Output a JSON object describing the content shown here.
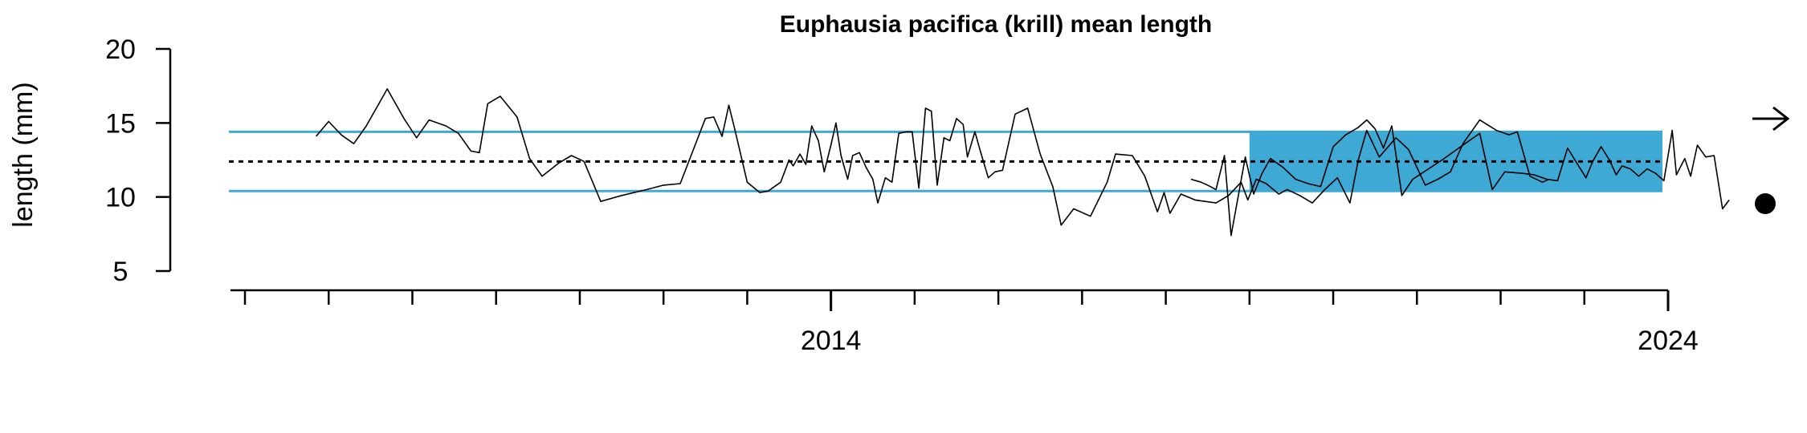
{
  "chart_data": {
    "type": "line",
    "title": "Euphausia pacifica (krill) mean length",
    "xlabel": "",
    "ylabel": "length (mm)",
    "ylim": [
      5,
      20
    ],
    "y_ticks": [
      "5",
      "10",
      "15",
      "20"
    ],
    "x_tick_labels": [
      {
        "label": "2014",
        "x": 2014.0
      },
      {
        "label": "2024",
        "x": 2024.0
      }
    ],
    "xlim": [
      2007,
      2024
    ],
    "x_minor_ticks": [
      2007,
      2008,
      2009,
      2010,
      2011,
      2012,
      2013,
      2014,
      2015,
      2016,
      2017,
      2018,
      2019,
      2020,
      2021,
      2022,
      2023,
      2024
    ],
    "reference": {
      "mean": 12.4,
      "upper_sd": 14.4,
      "lower_sd": 10.4,
      "recent_window_start": 2019.0,
      "recent_window_end": 2024.0
    },
    "colors": {
      "band": "#3fa9d6",
      "line": "#000000",
      "mean_line": "#000000"
    },
    "trend_symbol": "→",
    "mean_symbol": "●",
    "series": [
      {
        "points": [
          [
            2007.85,
            14.1
          ],
          [
            2008.0,
            15.1
          ],
          [
            2008.15,
            14.2
          ],
          [
            2008.3,
            13.6
          ],
          [
            2008.45,
            14.8
          ],
          [
            2008.7,
            17.3
          ],
          [
            2008.9,
            15.3
          ],
          [
            2009.05,
            14.0
          ],
          [
            2009.2,
            15.2
          ],
          [
            2009.4,
            14.8
          ],
          [
            2009.55,
            14.3
          ],
          [
            2009.7,
            13.1
          ],
          [
            2009.8,
            13.0
          ],
          [
            2009.9,
            16.3
          ],
          [
            2010.05,
            16.8
          ],
          [
            2010.25,
            15.4
          ],
          [
            2010.4,
            12.6
          ],
          [
            2010.55,
            11.4
          ],
          [
            2010.75,
            12.3
          ],
          [
            2010.9,
            12.8
          ],
          [
            2011.05,
            12.4
          ],
          [
            2011.25,
            9.7
          ],
          [
            2011.5,
            10.1
          ],
          [
            2011.8,
            10.5
          ],
          [
            2012.0,
            10.8
          ],
          [
            2012.2,
            10.9
          ],
          [
            2012.5,
            15.3
          ],
          [
            2012.6,
            15.4
          ],
          [
            2012.7,
            14.1
          ],
          [
            2012.78,
            16.2
          ],
          [
            2012.85,
            14.6
          ],
          [
            2013.0,
            11.0
          ],
          [
            2013.15,
            10.3
          ],
          [
            2013.25,
            10.4
          ],
          [
            2013.4,
            11.0
          ],
          [
            2013.5,
            12.5
          ],
          [
            2013.55,
            12.1
          ],
          [
            2013.63,
            12.9
          ],
          [
            2013.7,
            12.2
          ],
          [
            2013.77,
            14.8
          ],
          [
            2013.85,
            13.8
          ],
          [
            2013.92,
            11.7
          ],
          [
            2014.0,
            13.5
          ],
          [
            2014.06,
            15.0
          ],
          [
            2014.12,
            12.8
          ],
          [
            2014.2,
            11.2
          ],
          [
            2014.26,
            12.8
          ],
          [
            2014.34,
            13.0
          ],
          [
            2014.42,
            12.0
          ],
          [
            2014.5,
            11.2
          ],
          [
            2014.56,
            9.6
          ],
          [
            2014.65,
            11.3
          ],
          [
            2014.73,
            11.0
          ],
          [
            2014.81,
            14.3
          ],
          [
            2014.9,
            14.4
          ],
          [
            2014.97,
            14.4
          ],
          [
            2015.05,
            10.6
          ],
          [
            2015.13,
            16.0
          ],
          [
            2015.2,
            15.8
          ],
          [
            2015.27,
            10.8
          ],
          [
            2015.35,
            14.0
          ],
          [
            2015.42,
            13.8
          ],
          [
            2015.5,
            15.3
          ],
          [
            2015.58,
            14.9
          ],
          [
            2015.63,
            12.7
          ],
          [
            2015.72,
            14.4
          ],
          [
            2015.8,
            12.8
          ],
          [
            2015.88,
            11.3
          ],
          [
            2015.96,
            11.7
          ],
          [
            2016.05,
            11.8
          ],
          [
            2016.2,
            15.6
          ],
          [
            2016.35,
            16.0
          ],
          [
            2016.5,
            12.9
          ],
          [
            2016.65,
            10.7
          ],
          [
            2016.75,
            8.1
          ],
          [
            2016.9,
            9.2
          ],
          [
            2017.1,
            8.7
          ],
          [
            2017.3,
            11.0
          ],
          [
            2017.4,
            12.9
          ],
          [
            2017.6,
            12.8
          ],
          [
            2017.75,
            11.4
          ],
          [
            2017.9,
            9.0
          ],
          [
            2017.98,
            10.3
          ],
          [
            2018.05,
            8.9
          ],
          [
            2018.18,
            10.2
          ],
          [
            2018.35,
            9.8
          ],
          [
            2018.6,
            9.6
          ],
          [
            2018.75,
            10.1
          ],
          [
            2018.9,
            11.0
          ],
          [
            2018.98,
            9.8
          ],
          [
            2019.08,
            11.2
          ],
          [
            2019.2,
            10.9
          ],
          [
            2019.35,
            10.2
          ],
          [
            2019.45,
            10.5
          ],
          [
            2019.6,
            10.1
          ],
          [
            2019.75,
            9.6
          ],
          [
            2019.9,
            10.5
          ],
          [
            2020.05,
            11.3
          ],
          [
            2020.2,
            9.6
          ],
          [
            2020.3,
            12.5
          ],
          [
            2020.4,
            14.5
          ],
          [
            2020.55,
            12.7
          ],
          [
            2020.75,
            14.0
          ],
          [
            2020.9,
            13.2
          ],
          [
            2021.1,
            10.8
          ],
          [
            2021.25,
            11.2
          ],
          [
            2021.4,
            11.7
          ],
          [
            2021.55,
            13.6
          ],
          [
            2021.75,
            15.2
          ],
          [
            2021.95,
            14.5
          ],
          [
            2022.1,
            14.2
          ],
          [
            2022.2,
            14.4
          ],
          [
            2022.35,
            11.4
          ],
          [
            2022.5,
            11.0
          ],
          [
            2022.58,
            11.2
          ]
        ]
      },
      {
        "points": [
          [
            2018.3,
            11.2
          ],
          [
            2018.42,
            11.0
          ],
          [
            2018.5,
            10.8
          ],
          [
            2018.6,
            10.5
          ],
          [
            2018.7,
            12.8
          ],
          [
            2018.78,
            7.4
          ],
          [
            2018.88,
            10.5
          ],
          [
            2018.95,
            12.7
          ],
          [
            2019.05,
            10.2
          ],
          [
            2019.15,
            11.6
          ],
          [
            2019.25,
            12.6
          ],
          [
            2019.4,
            12.0
          ],
          [
            2019.55,
            11.2
          ],
          [
            2019.7,
            10.9
          ],
          [
            2019.85,
            10.7
          ],
          [
            2020.0,
            13.4
          ],
          [
            2020.15,
            14.2
          ],
          [
            2020.3,
            14.7
          ],
          [
            2020.4,
            15.2
          ],
          [
            2020.5,
            14.6
          ],
          [
            2020.6,
            13.3
          ],
          [
            2020.7,
            14.8
          ],
          [
            2020.82,
            10.1
          ],
          [
            2020.95,
            11.2
          ],
          [
            2021.3,
            12.5
          ],
          [
            2021.55,
            13.5
          ],
          [
            2021.75,
            14.3
          ],
          [
            2021.9,
            10.5
          ],
          [
            2022.05,
            11.7
          ],
          [
            2022.25,
            11.6
          ],
          [
            2022.4,
            11.5
          ],
          [
            2022.55,
            11.2
          ],
          [
            2022.68,
            11.1
          ],
          [
            2022.8,
            13.3
          ],
          [
            2022.92,
            12.2
          ],
          [
            2023.02,
            11.3
          ],
          [
            2023.1,
            12.4
          ],
          [
            2023.2,
            13.4
          ],
          [
            2023.3,
            12.5
          ],
          [
            2023.38,
            11.5
          ],
          [
            2023.45,
            12.1
          ],
          [
            2023.55,
            11.9
          ],
          [
            2023.65,
            11.4
          ],
          [
            2023.75,
            11.9
          ],
          [
            2023.85,
            11.6
          ],
          [
            2023.95,
            11.1
          ],
          [
            2024.05,
            14.5
          ],
          [
            2024.1,
            11.5
          ],
          [
            2024.2,
            12.6
          ],
          [
            2024.27,
            11.4
          ],
          [
            2024.35,
            13.5
          ],
          [
            2024.45,
            12.7
          ],
          [
            2024.55,
            12.8
          ],
          [
            2024.65,
            9.2
          ],
          [
            2024.73,
            9.8
          ]
        ]
      }
    ]
  }
}
